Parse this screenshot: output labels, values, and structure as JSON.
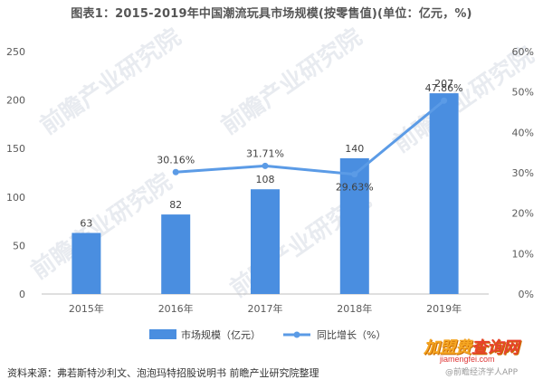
{
  "title": "图表1：2015-2019年中国潮流玩具市场规模(按零售值)(单位：亿元，%)",
  "source": "资料来源：弗若斯特沙利文、泡泡玛特招股说明书 前瞻产业研究院整理",
  "watermark": {
    "text": "前瞻产业研究院"
  },
  "brand": {
    "main": "加盟费",
    "highlight": "查询网",
    "url": "jiamengfei.com",
    "sub": "@前瞻经济学人APP"
  },
  "chart_data": {
    "type": "bar",
    "categories": [
      "2015年",
      "2016年",
      "2017年",
      "2018年",
      "2019年"
    ],
    "series": [
      {
        "name": "市场规模（亿元）",
        "type": "bar",
        "axis": "left",
        "values": [
          63,
          82,
          108,
          140,
          207
        ],
        "labels": [
          "63",
          "82",
          "108",
          "140",
          "207"
        ],
        "color": "#4a8ee0"
      },
      {
        "name": "同比增长（%）",
        "type": "line",
        "axis": "right",
        "values": [
          null,
          30.16,
          31.71,
          29.63,
          47.86
        ],
        "labels": [
          "",
          "30.16%",
          "31.71%",
          "29.63%",
          "47.86%"
        ],
        "color": "#5b9be6"
      }
    ],
    "ylim": [
      0,
      250
    ],
    "yticks": [
      "0",
      "50",
      "100",
      "150",
      "200",
      "250"
    ],
    "y2lim": [
      0,
      60
    ],
    "y2ticks": [
      "0%",
      "10%",
      "20%",
      "30%",
      "40%",
      "50%",
      "60%"
    ],
    "grid": false,
    "legend": "bottom-center"
  }
}
